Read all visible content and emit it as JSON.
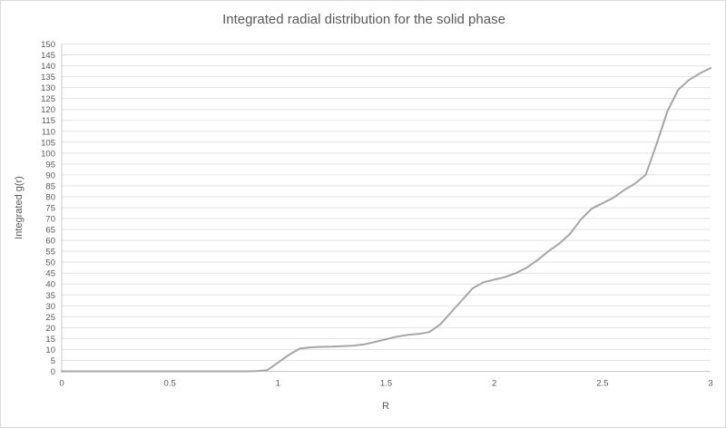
{
  "chart_data": {
    "type": "line",
    "title": "Integrated radial distribution for the solid phase",
    "xlabel": "R",
    "ylabel": "Integrated g(r)",
    "xlim": [
      0,
      3
    ],
    "ylim": [
      0,
      150
    ],
    "grid": true,
    "legend": "none",
    "x_tick_labels": [
      "0",
      "0.5",
      "1",
      "1.5",
      "2",
      "2.5",
      "3"
    ],
    "x_tick_values": [
      0,
      0.5,
      1,
      1.5,
      2,
      2.5,
      3
    ],
    "y_tick_labels": [
      0,
      5,
      10,
      15,
      20,
      25,
      30,
      35,
      40,
      45,
      50,
      55,
      60,
      65,
      70,
      75,
      80,
      85,
      90,
      95,
      100,
      105,
      110,
      115,
      120,
      125,
      130,
      135,
      140,
      145,
      150
    ],
    "series": [
      {
        "name": "Integrated g(r)",
        "x": [
          0,
          0.05,
          0.1,
          0.15,
          0.2,
          0.25,
          0.3,
          0.35,
          0.4,
          0.45,
          0.5,
          0.55,
          0.6,
          0.65,
          0.7,
          0.75,
          0.8,
          0.85,
          0.9,
          0.95,
          1.0,
          1.05,
          1.1,
          1.15,
          1.2,
          1.25,
          1.3,
          1.35,
          1.4,
          1.45,
          1.5,
          1.55,
          1.6,
          1.65,
          1.7,
          1.75,
          1.8,
          1.85,
          1.9,
          1.95,
          2.0,
          2.05,
          2.1,
          2.15,
          2.2,
          2.25,
          2.3,
          2.35,
          2.4,
          2.45,
          2.5,
          2.55,
          2.6,
          2.65,
          2.7,
          2.75,
          2.8,
          2.85,
          2.9,
          2.95,
          3.0
        ],
        "y": [
          0,
          0,
          0,
          0,
          0,
          0,
          0,
          0,
          0,
          0,
          0,
          0,
          0,
          0,
          0,
          0,
          0,
          0,
          0.1,
          0.5,
          4,
          7.5,
          10.4,
          11,
          11.2,
          11.3,
          11.5,
          11.8,
          12.4,
          13.5,
          14.7,
          15.9,
          16.7,
          17.1,
          18,
          21.5,
          27,
          32.5,
          38,
          40.8,
          42,
          43.2,
          45,
          47.5,
          51,
          55,
          58.5,
          63,
          69.5,
          74.5,
          77,
          79.5,
          83,
          86,
          90,
          104,
          119,
          129,
          133.5,
          136.5,
          139
        ]
      }
    ],
    "colors": {
      "line": "#a6a6a6",
      "gridline": "#e3e3e3",
      "axis_line": "#c9c9c9",
      "text": "#595959",
      "border": "#d9d9d9",
      "background": "#ffffff"
    }
  }
}
